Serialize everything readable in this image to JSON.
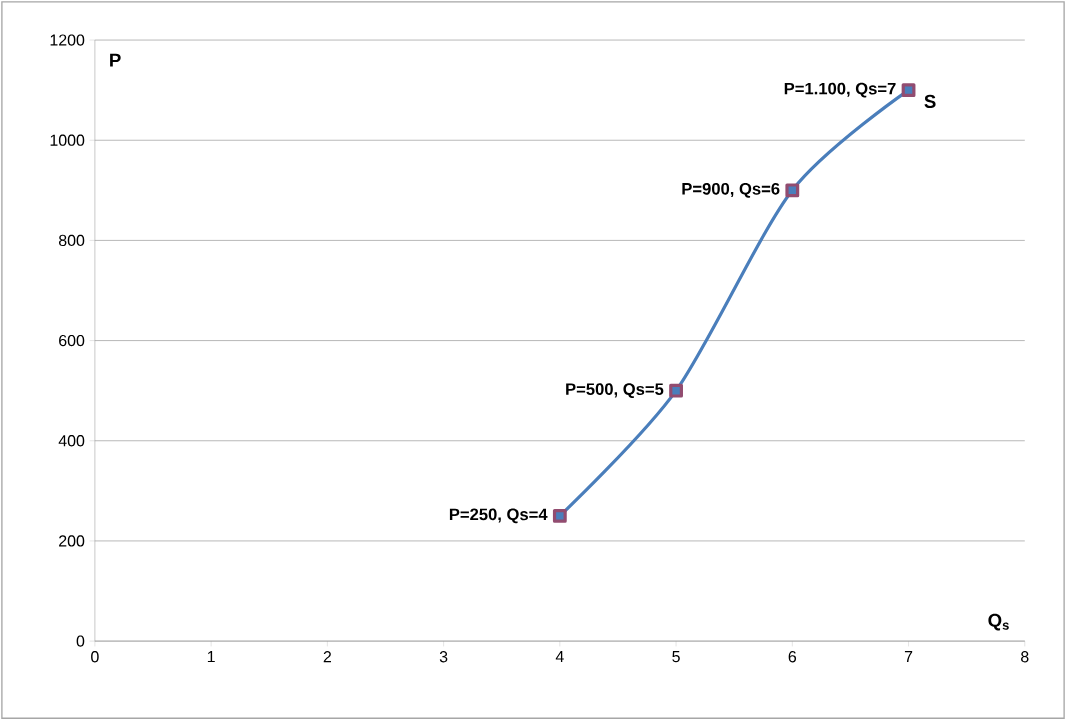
{
  "chart_data": {
    "type": "line",
    "xlabel": "Q$_{s}$",
    "ylabel": "P",
    "x": [
      4,
      5,
      6,
      7
    ],
    "series": [
      {
        "name": "S",
        "color": "#4a7ebb",
        "values": [
          250,
          500,
          900,
          1100
        ]
      }
    ],
    "xlim": [
      0,
      8
    ],
    "ylim": [
      0,
      1200
    ],
    "xticks": [
      0,
      1,
      2,
      3,
      4,
      5,
      6,
      7,
      8
    ],
    "yticks": [
      0,
      200,
      400,
      600,
      800,
      1000,
      1200
    ],
    "grid": "y",
    "marker": "square",
    "line_style": "solid",
    "legend": false,
    "annotations": [
      {
        "text": "P=250, Qs=4",
        "x": 4,
        "y": 250
      },
      {
        "text": "P=500, Qs=5",
        "x": 5,
        "y": 500
      },
      {
        "text": "P=900, Qs=6",
        "x": 6,
        "y": 900
      },
      {
        "text": "P=1.100, Qs=7",
        "x": 7,
        "y": 1100
      }
    ]
  }
}
